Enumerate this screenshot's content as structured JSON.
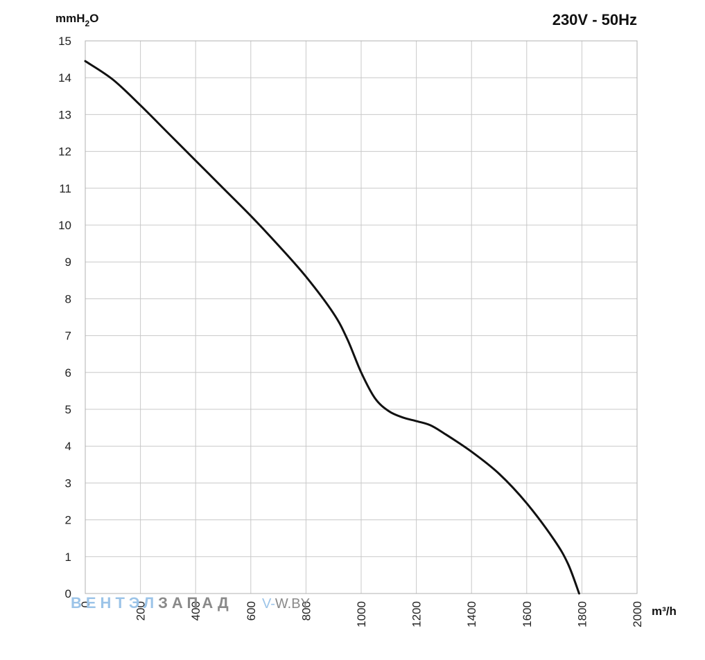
{
  "chart_data": {
    "type": "line",
    "title": "230V - 50Hz",
    "ylabel_main": "mmH",
    "ylabel_sub": "2",
    "ylabel_tail": "O",
    "xlabel": "m³/h",
    "xlim": [
      0,
      2000
    ],
    "ylim": [
      0,
      15
    ],
    "grid": true,
    "x_ticks": [
      "0",
      "200",
      "400",
      "600",
      "800",
      "1000",
      "1200",
      "1400",
      "1600",
      "1800",
      "2000"
    ],
    "y_ticks": [
      "0",
      "1",
      "2",
      "3",
      "4",
      "5",
      "6",
      "7",
      "8",
      "9",
      "10",
      "11",
      "12",
      "13",
      "14",
      "15"
    ],
    "series": [
      {
        "color": "#111111",
        "x": [
          0,
          100,
          200,
          300,
          400,
          500,
          600,
          700,
          800,
          900,
          950,
          1000,
          1050,
          1100,
          1150,
          1200,
          1250,
          1300,
          1400,
          1500,
          1600,
          1700,
          1750,
          1790
        ],
        "y": [
          14.45,
          13.95,
          13.25,
          12.5,
          11.75,
          11.0,
          10.25,
          9.45,
          8.6,
          7.6,
          6.9,
          6.0,
          5.3,
          4.95,
          4.78,
          4.68,
          4.57,
          4.35,
          3.85,
          3.25,
          2.45,
          1.45,
          0.8,
          0.0
        ]
      }
    ]
  },
  "watermark": {
    "brand_part1": "ВЕНТЭЛ",
    "brand_part2": "ЗАПАД",
    "site_part1": "V-",
    "site_part2": "W.BY"
  }
}
